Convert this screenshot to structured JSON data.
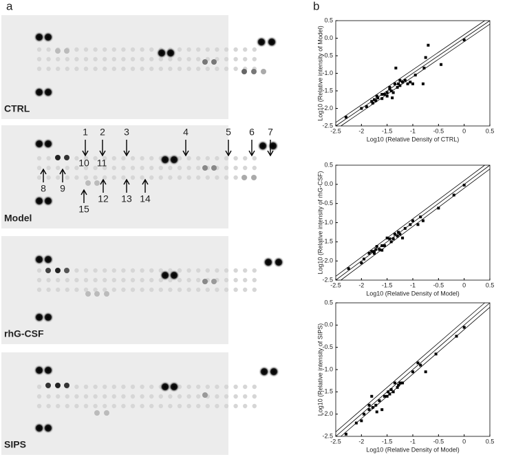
{
  "figure": {
    "panel_a": "a",
    "panel_b": "b",
    "blots": [
      "CTRL",
      "Model",
      "rhG-CSF",
      "SIPS"
    ],
    "arrow_labels": [
      "1",
      "2",
      "3",
      "4",
      "5",
      "6",
      "7",
      "8",
      "9",
      "10",
      "11",
      "12",
      "13",
      "14",
      "15"
    ]
  },
  "chart_data": [
    {
      "type": "scatter",
      "xlabel": "Log10 (Relative Density of CTRL)",
      "ylabel": "Log10 (Relative intensity of Model)",
      "color": "#000000",
      "x": [
        -2.3,
        -2.0,
        -1.9,
        -1.8,
        -1.78,
        -1.75,
        -1.72,
        -1.7,
        -1.68,
        -1.6,
        -1.55,
        -1.5,
        -1.5,
        -1.45,
        -1.42,
        -1.4,
        -1.38,
        -1.35,
        -1.33,
        -1.3,
        -1.28,
        -1.25,
        -1.2,
        -1.15,
        -1.1,
        -1.05,
        -1.0,
        -0.95,
        -0.8,
        -0.78,
        -0.75,
        -0.7,
        -0.45,
        0.0,
        -1.45,
        -1.6,
        -1.25
      ],
      "values": [
        -2.25,
        -2.0,
        -1.95,
        -1.8,
        -1.85,
        -1.75,
        -1.78,
        -1.65,
        -1.7,
        -1.72,
        -1.6,
        -1.55,
        -1.65,
        -1.4,
        -1.5,
        -1.7,
        -1.55,
        -1.3,
        -0.85,
        -1.4,
        -1.3,
        -1.35,
        -1.25,
        -1.2,
        -1.3,
        -1.25,
        -1.3,
        -1.05,
        -1.3,
        -0.85,
        -0.55,
        -0.2,
        -0.75,
        -0.05,
        -1.45,
        -1.6,
        -1.2
      ],
      "diagonals": [
        -0.1,
        0,
        0.1
      ],
      "xlim": [
        -2.5,
        0.5
      ],
      "xticks": [
        -2.5,
        -2,
        -1.5,
        -1,
        -0.5,
        0,
        0.5
      ],
      "ylim": [
        -2.5,
        0.5
      ],
      "yticks": [
        {
          "value": -2.5,
          "label": "-2.5"
        },
        {
          "value": -2,
          "label": "-2.0"
        },
        {
          "value": -1.5,
          "label": "-1.5"
        },
        {
          "value": -1,
          "label": "-1.0"
        },
        {
          "value": -0.5,
          "label": "-0.5"
        },
        {
          "value": 0,
          "label": "0.0"
        },
        {
          "value": 0.5,
          "label": "0.5"
        }
      ]
    },
    {
      "type": "scatter",
      "xlabel": "Log10 (Relative Density of Model)",
      "ylabel": "Log10 (Relative intensity of rhG-CSF)",
      "color": "#000000",
      "x": [
        -2.25,
        -2.0,
        -1.95,
        -1.85,
        -1.8,
        -1.75,
        -1.72,
        -1.7,
        -1.65,
        -1.6,
        -1.55,
        -1.5,
        -1.45,
        -1.42,
        -1.38,
        -1.35,
        -1.3,
        -1.28,
        -1.25,
        -1.2,
        -1.15,
        -1.05,
        -1.0,
        -0.9,
        -0.85,
        -0.8,
        -0.5,
        -0.2,
        0.0,
        -1.75,
        -1.6
      ],
      "values": [
        -2.2,
        -2.05,
        -1.95,
        -1.8,
        -1.75,
        -1.8,
        -1.7,
        -1.62,
        -1.7,
        -1.72,
        -1.6,
        -1.4,
        -1.42,
        -1.5,
        -1.42,
        -1.3,
        -1.35,
        -1.25,
        -1.3,
        -1.4,
        -1.15,
        -1.05,
        -0.95,
        -1.05,
        -0.85,
        -0.95,
        -0.62,
        -0.28,
        -0.02,
        -1.75,
        -1.6
      ],
      "diagonals": [
        -0.1,
        0,
        0.1
      ],
      "xlim": [
        -2.5,
        0.5
      ],
      "xticks": [
        -2.5,
        -2,
        -1.5,
        -1,
        -0.5,
        0,
        0.5
      ],
      "ylim": [
        -2.5,
        0.5
      ],
      "yticks": [
        {
          "value": -2.5,
          "label": "-2.5"
        },
        {
          "value": -2,
          "label": "-2.0"
        },
        {
          "value": -1.5,
          "label": "-1.5"
        },
        {
          "value": -1,
          "label": "-1.0"
        },
        {
          "value": -0.5,
          "label": "-0.5"
        },
        {
          "value": 0,
          "label": "0.0"
        },
        {
          "value": 0.5,
          "label": "0.5"
        }
      ]
    },
    {
      "type": "scatter",
      "xlabel": "Log10 (Relative Density of Model)",
      "ylabel": "Log10 (Relative intensity of SIPS)",
      "color": "#000000",
      "x": [
        -2.3,
        -2.1,
        -2.0,
        -1.95,
        -1.85,
        -1.8,
        -1.78,
        -1.72,
        -1.7,
        -1.65,
        -1.6,
        -1.55,
        -1.5,
        -1.45,
        -1.42,
        -1.38,
        -1.35,
        -1.3,
        -1.28,
        -1.25,
        -1.2,
        -1.0,
        -0.9,
        -0.85,
        -0.75,
        -0.55,
        -0.15,
        0.0,
        -1.85,
        -1.48
      ],
      "values": [
        -2.45,
        -2.2,
        -2.15,
        -2.0,
        -1.9,
        -1.6,
        -1.85,
        -1.8,
        -1.95,
        -1.7,
        -1.9,
        -1.6,
        -1.6,
        -1.55,
        -1.45,
        -1.5,
        -1.3,
        -1.4,
        -1.35,
        -1.3,
        -1.3,
        -1.05,
        -0.85,
        -0.9,
        -1.05,
        -0.65,
        -0.25,
        -0.05,
        -1.8,
        -1.5
      ],
      "diagonals": [
        -0.1,
        0,
        0.1
      ],
      "xlim": [
        -2.5,
        0.5
      ],
      "xticks": [
        -2.5,
        -2,
        -1.5,
        -1,
        -0.5,
        0,
        0.5
      ],
      "ylim": [
        -2.5,
        0.5
      ],
      "yticks": [
        {
          "value": -2.5,
          "label": "-2.5"
        },
        {
          "value": -2,
          "label": "-2.0"
        },
        {
          "value": -1.5,
          "label": "-1.5"
        },
        {
          "value": -1,
          "label": "-1.0"
        },
        {
          "value": -0.5,
          "label": "-0.5"
        },
        {
          "value": 0,
          "label": "0.0"
        },
        {
          "value": 0.5,
          "label": "0.5"
        }
      ]
    }
  ]
}
